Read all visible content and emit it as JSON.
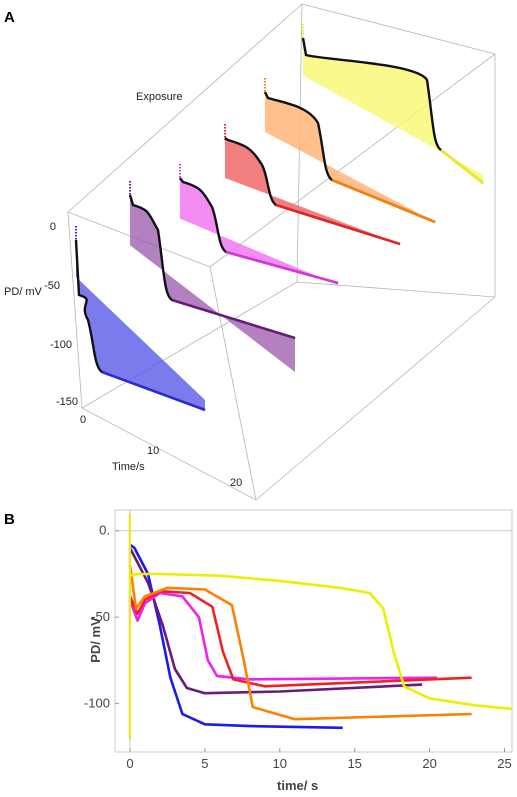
{
  "chart_data": [
    {
      "panel": "A",
      "type": "line",
      "projection": "3d",
      "labels": {
        "z": "PD/ mV",
        "x": "Time/s",
        "exposure": "Exposure"
      },
      "z_ticks": [
        "0",
        "-50",
        "-100",
        "-150"
      ],
      "x_ticks": [
        "0",
        "10",
        "20"
      ],
      "traces": [
        {
          "color": "#2a2ad6",
          "fill": "#5a5ae8"
        },
        {
          "color": "#6a1a7a",
          "fill": "#a060b0"
        },
        {
          "color": "#e030e0",
          "fill": "#f070f0"
        },
        {
          "color": "#ee2020",
          "fill": "#f06060"
        },
        {
          "color": "#ff8000",
          "fill": "#ffb070"
        },
        {
          "color": "#f0f020",
          "fill": "#f8f870"
        }
      ]
    },
    {
      "panel": "B",
      "type": "line",
      "xlabel": "time/ s",
      "ylabel": "PD/ mV",
      "xlim": [
        -1,
        25.5
      ],
      "ylim": [
        -128,
        12
      ],
      "x_ticks": [
        "0",
        "5",
        "10",
        "15",
        "20",
        "25"
      ],
      "y_ticks": [
        "0.",
        "-50",
        "-100"
      ],
      "series": [
        {
          "color": "#1a1aee",
          "x": [
            0,
            0.3,
            1.2,
            2.0,
            2.7,
            3.5,
            5.0,
            8.0,
            14.2
          ],
          "y": [
            -8,
            -10,
            -25,
            -55,
            -85,
            -106,
            -112,
            -113,
            -114
          ]
        },
        {
          "color": "#6a1a7a",
          "x": [
            0,
            0.3,
            1.2,
            2.2,
            3.0,
            3.8,
            5.0,
            10.0,
            19.5
          ],
          "y": [
            -10,
            -15,
            -30,
            -55,
            -80,
            -91,
            -94,
            -93,
            -89
          ]
        },
        {
          "color": "#ee22ee",
          "x": [
            0,
            0.5,
            1.0,
            2.0,
            3.5,
            4.6,
            5.2,
            5.8,
            8.0,
            20.5
          ],
          "y": [
            -40,
            -52,
            -42,
            -36,
            -38,
            -50,
            -75,
            -84,
            -86,
            -85
          ]
        },
        {
          "color": "#ee2222",
          "x": [
            0,
            0.5,
            1.0,
            2.0,
            4.0,
            5.5,
            6.2,
            6.9,
            9.0,
            22.8
          ],
          "y": [
            -38,
            -48,
            -40,
            -35,
            -36,
            -44,
            -70,
            -86,
            -90,
            -85
          ]
        },
        {
          "color": "#ff8000",
          "x": [
            0,
            0.4,
            1.0,
            2.5,
            5.0,
            6.8,
            7.6,
            8.2,
            11.0,
            22.8
          ],
          "y": [
            -20,
            -45,
            -38,
            -33,
            -34,
            -43,
            -75,
            -102,
            -109,
            -106
          ]
        },
        {
          "color": "#eeee00",
          "x": [
            0,
            0.5,
            2.0,
            6.0,
            10.0,
            14.0,
            16.0,
            16.9,
            17.6,
            18.3,
            20.0,
            23.0,
            25.5
          ],
          "y": [
            -26,
            -25,
            -25,
            -26,
            -29,
            -33,
            -36,
            -45,
            -70,
            -90,
            -97,
            -101,
            -103
          ]
        }
      ]
    }
  ]
}
